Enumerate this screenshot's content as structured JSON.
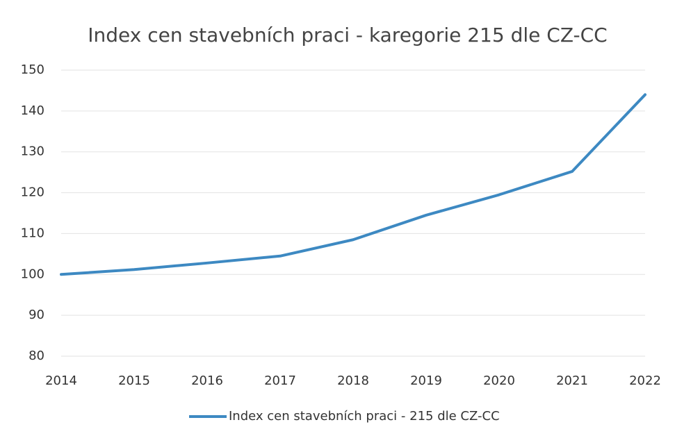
{
  "chart_data": {
    "type": "line",
    "title": "Index cen stavebních praci - karegorie 215 dle CZ-CC",
    "categories": [
      "2014",
      "2015",
      "2016",
      "2017",
      "2018",
      "2019",
      "2020",
      "2021",
      "2022"
    ],
    "series": [
      {
        "name": "Index cen stavebních praci - 215 dle CZ-CC",
        "color": "#3d89c2",
        "values": [
          100,
          101.2,
          102.8,
          104.5,
          108.5,
          114.5,
          119.5,
          125.2,
          144
        ]
      }
    ],
    "ylim": [
      80,
      150
    ],
    "yticks": [
      80,
      90,
      100,
      110,
      120,
      130,
      140,
      150
    ],
    "grid": true,
    "legend": "bottom"
  }
}
